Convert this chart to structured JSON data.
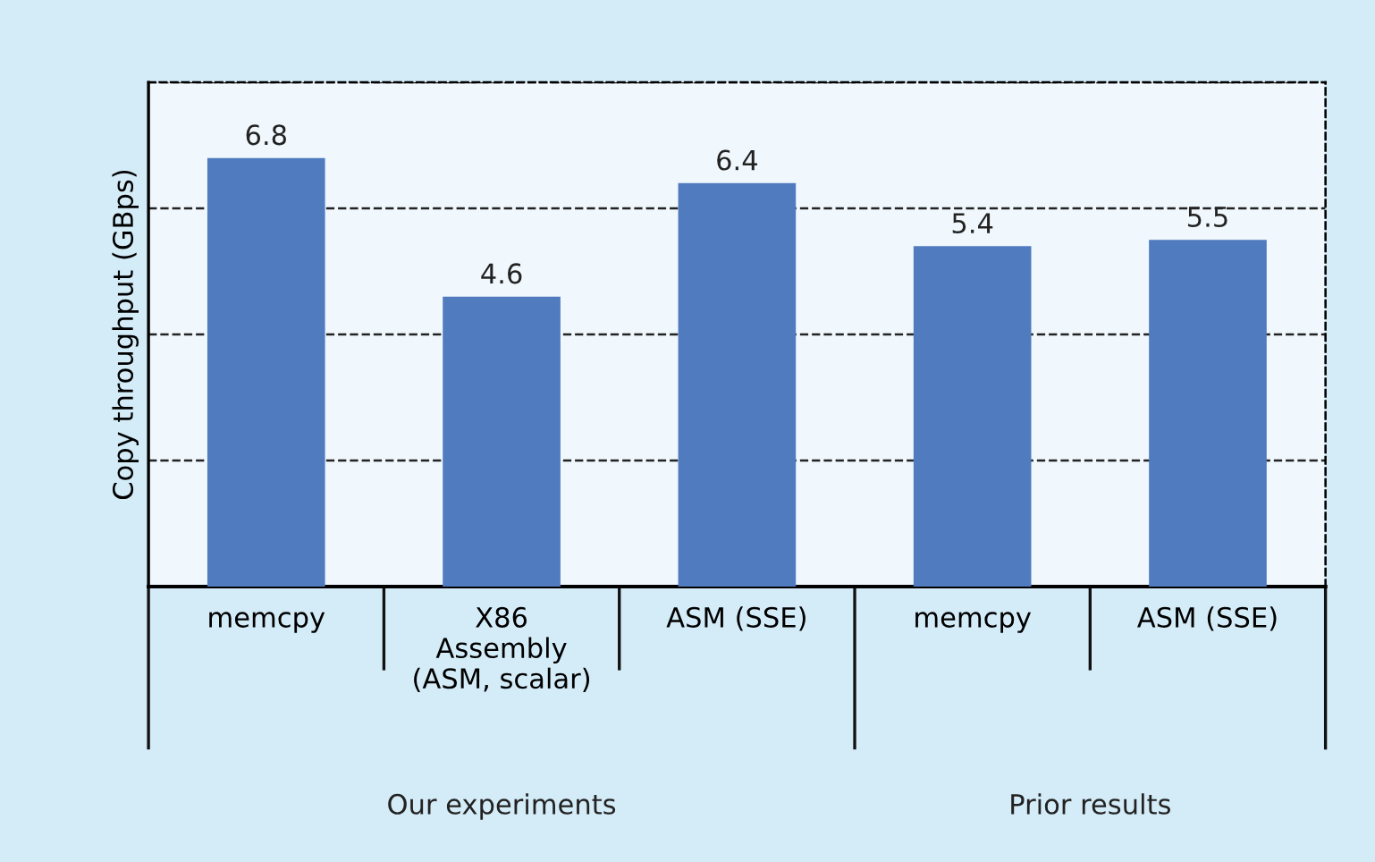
{
  "chart_data": {
    "type": "bar",
    "ylabel": "Copy throughput (GBps)",
    "categories": [
      "memcpy",
      "X86\nAssembly\n(ASM, scalar)",
      "ASM (SSE)",
      "memcpy",
      "ASM (SSE)"
    ],
    "values": [
      6.8,
      4.6,
      6.4,
      5.4,
      5.5
    ],
    "color": "#517bbf",
    "data_labels": true,
    "ylim": [
      0,
      8
    ],
    "yticks": [
      {
        "value": 0,
        "label": null
      },
      {
        "value": 2,
        "label": null
      },
      {
        "value": 4,
        "label": null
      },
      {
        "value": 6,
        "label": null
      },
      {
        "value": 8,
        "label": null
      }
    ],
    "tick_labels": "x",
    "grid": "y",
    "annotations": [
      "Our experiments",
      "Prior results"
    ]
  }
}
